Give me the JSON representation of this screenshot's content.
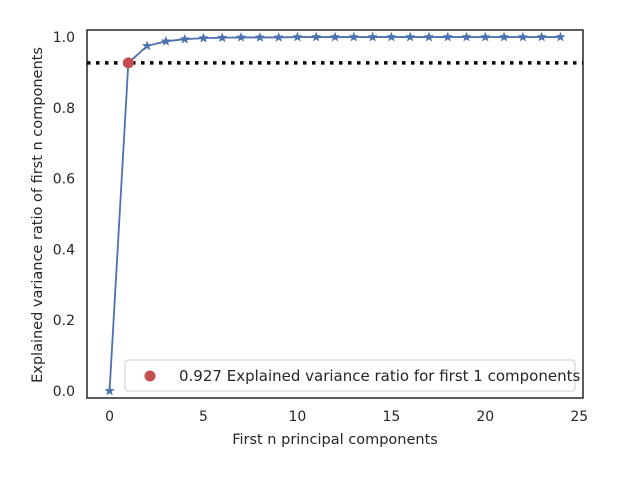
{
  "chart_data": {
    "type": "line",
    "title": "",
    "xlabel": "First n principal components",
    "ylabel": "Explained variance ratio of first n components",
    "xlim": [
      -1.2,
      25.2
    ],
    "ylim": [
      -0.02,
      1.02
    ],
    "x_ticks": [
      0,
      5,
      10,
      15,
      20,
      25
    ],
    "y_ticks": [
      0.0,
      0.2,
      0.4,
      0.6,
      0.8,
      1.0
    ],
    "x_tick_labels": [
      "0",
      "5",
      "10",
      "15",
      "20",
      "25"
    ],
    "y_tick_labels": [
      "0.0",
      "0.2",
      "0.4",
      "0.6",
      "0.8",
      "1.0"
    ],
    "grid": false,
    "series": [
      {
        "color": "#4c72b0",
        "marker": "star",
        "x": [
          0,
          1,
          2,
          3,
          4,
          5,
          6,
          7,
          8,
          9,
          10,
          11,
          12,
          13,
          14,
          15,
          16,
          17,
          18,
          19,
          20,
          21,
          22,
          23,
          24
        ],
        "values": [
          0.0,
          0.927,
          0.975,
          0.988,
          0.994,
          0.997,
          0.998,
          0.999,
          0.999,
          0.999,
          1.0,
          1.0,
          1.0,
          1.0,
          1.0,
          1.0,
          1.0,
          1.0,
          1.0,
          1.0,
          1.0,
          1.0,
          1.0,
          1.0,
          1.0
        ]
      }
    ],
    "threshold_line": {
      "y": 0.927,
      "style": "dotted",
      "color": "#000000"
    },
    "highlight_point": {
      "x": 1,
      "y": 0.927,
      "color": "#c44e52"
    },
    "legend": {
      "position": "lower-right",
      "label": "0.927 Explained variance ratio for first 1 components"
    }
  }
}
